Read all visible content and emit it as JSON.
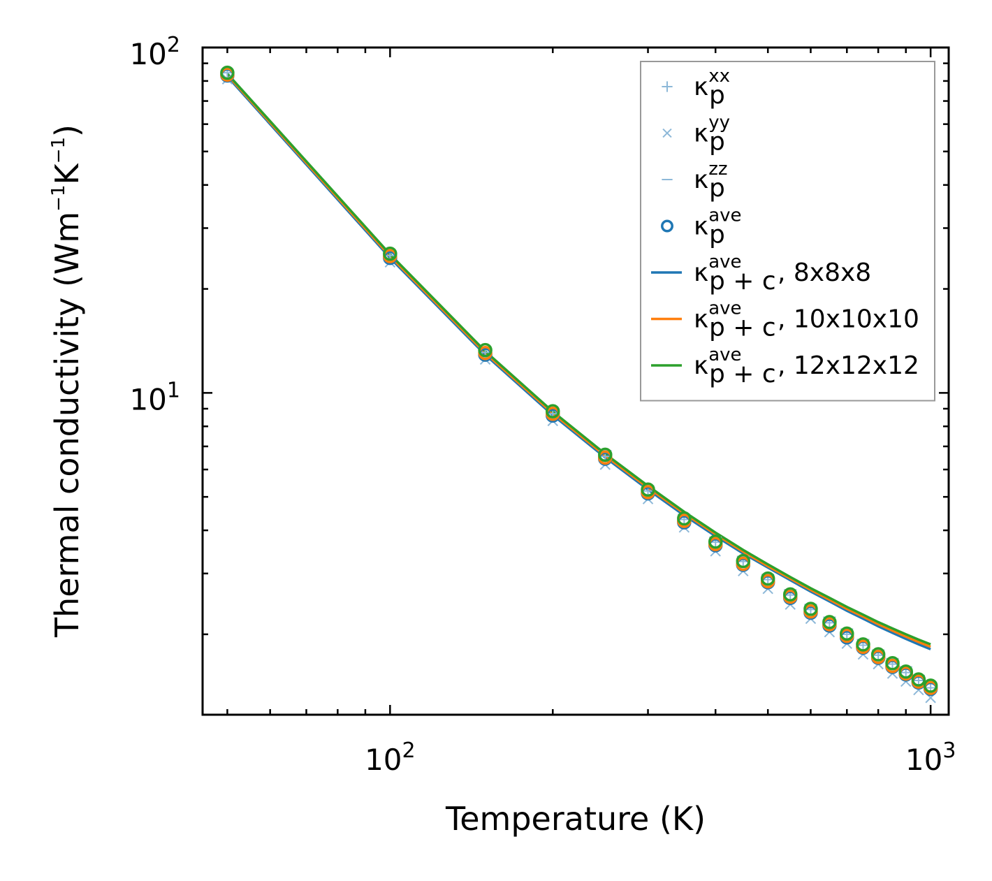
{
  "chart_data": {
    "type": "line",
    "xscale": "log",
    "yscale": "log",
    "xlim": [
      45,
      1080
    ],
    "ylim": [
      1.17,
      100
    ],
    "xlabel": "Temperature (K)",
    "ylabel": {
      "main": "Thermal conductivity (Wm",
      "unit_mid": "K",
      "close": ")",
      "sup1": "−1",
      "sup2": "−1"
    },
    "xticks": [
      {
        "base": "10",
        "exp": "2",
        "value": 100
      },
      {
        "base": "10",
        "exp": "3",
        "value": 1000
      }
    ],
    "yticks": [
      {
        "base": "10",
        "exp": "1",
        "value": 10
      },
      {
        "base": "10",
        "exp": "2",
        "value": 100
      }
    ],
    "x": [
      50,
      100,
      150,
      200,
      250,
      300,
      350,
      400,
      450,
      500,
      550,
      600,
      650,
      700,
      750,
      800,
      850,
      900,
      950,
      1000
    ],
    "series": [
      {
        "name": "kp_xx",
        "kind": "marker",
        "marker": "+",
        "color": "#8db8d8",
        "values": [
          84.5,
          25.0,
          13.1,
          8.7,
          6.55,
          5.2,
          4.3,
          3.7,
          3.25,
          2.88,
          2.6,
          2.36,
          2.16,
          2.0,
          1.86,
          1.74,
          1.64,
          1.55,
          1.47,
          1.4
        ]
      },
      {
        "name": "kp_yy",
        "kind": "marker",
        "marker": "x",
        "color": "#8db8d8",
        "values": [
          81.0,
          23.9,
          12.5,
          8.3,
          6.2,
          4.93,
          4.08,
          3.48,
          3.05,
          2.71,
          2.44,
          2.22,
          2.03,
          1.88,
          1.75,
          1.64,
          1.54,
          1.46,
          1.38,
          1.31
        ]
      },
      {
        "name": "kp_zz",
        "kind": "marker",
        "marker": "_",
        "color": "#8db8d8",
        "values": [
          86.0,
          25.7,
          13.4,
          9.0,
          6.8,
          5.38,
          4.45,
          3.82,
          3.36,
          2.98,
          2.69,
          2.44,
          2.24,
          2.07,
          1.93,
          1.8,
          1.7,
          1.61,
          1.52,
          1.45
        ]
      },
      {
        "name": "kp_ave",
        "kind": "marker",
        "marker": "o",
        "color": "#1f77b4",
        "values": [
          83.0,
          24.6,
          12.9,
          8.6,
          6.45,
          5.12,
          4.22,
          3.62,
          3.18,
          2.83,
          2.55,
          2.31,
          2.12,
          1.96,
          1.83,
          1.71,
          1.61,
          1.53,
          1.45,
          1.39
        ]
      },
      {
        "name": "kp_ave_orange_markers",
        "kind": "marker",
        "marker": "o",
        "color": "#ff7f0e",
        "values": [
          83.5,
          24.9,
          13.05,
          8.7,
          6.5,
          5.16,
          4.26,
          3.65,
          3.2,
          2.85,
          2.57,
          2.33,
          2.14,
          1.98,
          1.84,
          1.72,
          1.62,
          1.54,
          1.46,
          1.4
        ]
      },
      {
        "name": "kp_ave_green_markers",
        "kind": "marker",
        "marker": "o",
        "color": "#2ca02c",
        "values": [
          84.5,
          25.3,
          13.3,
          8.85,
          6.62,
          5.25,
          4.33,
          3.71,
          3.26,
          2.9,
          2.61,
          2.37,
          2.17,
          2.01,
          1.87,
          1.75,
          1.65,
          1.56,
          1.48,
          1.42
        ]
      },
      {
        "name": "kpc_ave_8x8x8",
        "kind": "line",
        "color": "#1f77b4",
        "values": [
          82.5,
          24.6,
          12.9,
          8.62,
          6.5,
          5.25,
          4.42,
          3.85,
          3.43,
          3.12,
          2.87,
          2.66,
          2.49,
          2.34,
          2.22,
          2.11,
          2.02,
          1.94,
          1.87,
          1.81
        ]
      },
      {
        "name": "kpc_ave_10x10x10",
        "kind": "line",
        "color": "#ff7f0e",
        "values": [
          83.3,
          24.9,
          13.05,
          8.73,
          6.58,
          5.32,
          4.48,
          3.9,
          3.47,
          3.15,
          2.9,
          2.69,
          2.52,
          2.37,
          2.25,
          2.14,
          2.05,
          1.97,
          1.9,
          1.84
        ]
      },
      {
        "name": "kpc_ave_12x12x12",
        "kind": "line",
        "color": "#2ca02c",
        "values": [
          84.0,
          25.2,
          13.2,
          8.83,
          6.66,
          5.38,
          4.53,
          3.94,
          3.51,
          3.19,
          2.93,
          2.72,
          2.55,
          2.4,
          2.28,
          2.17,
          2.08,
          2.0,
          1.93,
          1.87
        ]
      }
    ],
    "legend": {
      "placement": "top-right",
      "entries": [
        {
          "base": "κ",
          "sup": "xx",
          "sub": "p",
          "suffix": "",
          "marker": "+",
          "color": "#8db8d8"
        },
        {
          "base": "κ",
          "sup": "yy",
          "sub": "p",
          "suffix": "",
          "marker": "x",
          "color": "#8db8d8"
        },
        {
          "base": "κ",
          "sup": "zz",
          "sub": "p",
          "suffix": "",
          "marker": "_",
          "color": "#8db8d8"
        },
        {
          "base": "κ",
          "sup": "ave",
          "sub": "p",
          "suffix": "",
          "marker": "o",
          "color": "#1f77b4"
        },
        {
          "base": "κ",
          "sup": "ave",
          "sub": "p + c",
          "suffix": ", 8x8x8",
          "marker": "line",
          "color": "#1f77b4"
        },
        {
          "base": "κ",
          "sup": "ave",
          "sub": "p + c",
          "suffix": ", 10x10x10",
          "marker": "line",
          "color": "#ff7f0e"
        },
        {
          "base": "κ",
          "sup": "ave",
          "sub": "p + c",
          "suffix": ", 12x12x12",
          "marker": "line",
          "color": "#2ca02c"
        }
      ]
    }
  }
}
